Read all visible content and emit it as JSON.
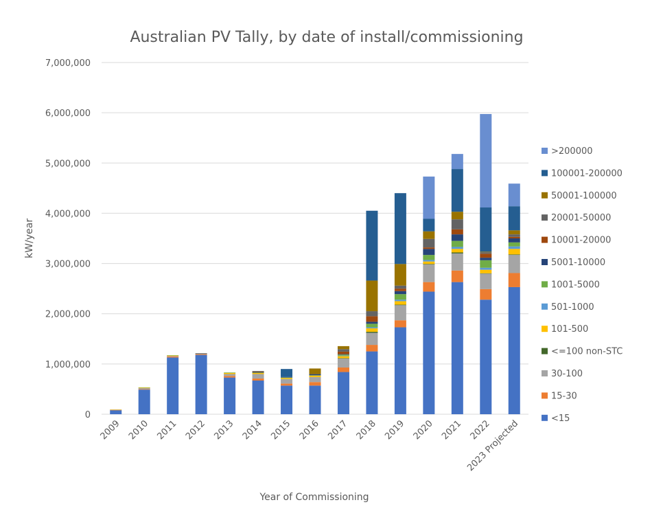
{
  "chart_data": {
    "type": "bar",
    "stacked": true,
    "title": "Australian PV Tally, by date of install/commissioning",
    "xlabel": "Year of Commissioning",
    "ylabel": "kW/year",
    "ylim": [
      0,
      7000000
    ],
    "yticks": [
      0,
      1000000,
      2000000,
      3000000,
      4000000,
      5000000,
      6000000,
      7000000
    ],
    "ytick_labels": [
      "0",
      "1,000,000",
      "2,000,000",
      "3,000,000",
      "4,000,000",
      "5,000,000",
      "6,000,000",
      "7,000,000"
    ],
    "grid": true,
    "legend_position": "right",
    "categories": [
      "2009",
      "2010",
      "2011",
      "2012",
      "2013",
      "2014",
      "2015",
      "2016",
      "2017",
      "2018",
      "2019",
      "2020",
      "2021",
      "2022",
      "2023 Projected"
    ],
    "series": [
      {
        "name": "<15",
        "color": "#4472c4",
        "values": [
          80000,
          490000,
          1130000,
          1180000,
          730000,
          670000,
          570000,
          570000,
          840000,
          1250000,
          1730000,
          2440000,
          2630000,
          2280000,
          2530000
        ]
      },
      {
        "name": "15-30",
        "color": "#ed7d31",
        "values": [
          5000,
          10000,
          20000,
          10000,
          30000,
          40000,
          40000,
          70000,
          90000,
          130000,
          140000,
          190000,
          230000,
          210000,
          280000
        ]
      },
      {
        "name": "30-100",
        "color": "#a5a5a5",
        "values": [
          5000,
          20000,
          10000,
          10000,
          40000,
          90000,
          90000,
          100000,
          180000,
          240000,
          300000,
          350000,
          340000,
          310000,
          360000
        ]
      },
      {
        "name": "<=100 non-STC",
        "color": "#43682b",
        "values": [
          0,
          0,
          0,
          0,
          0,
          0,
          0,
          0,
          5000,
          20000,
          10000,
          10000,
          20000,
          5000,
          10000
        ]
      },
      {
        "name": "101-500",
        "color": "#ffc000",
        "values": [
          5000,
          10000,
          10000,
          0,
          20000,
          20000,
          20000,
          30000,
          40000,
          70000,
          70000,
          50000,
          70000,
          70000,
          110000
        ]
      },
      {
        "name": "501-1000",
        "color": "#5b9bd5",
        "values": [
          0,
          0,
          0,
          0,
          0,
          0,
          0,
          0,
          10000,
          20000,
          30000,
          30000,
          40000,
          40000,
          50000
        ]
      },
      {
        "name": "1001-5000",
        "color": "#70ad47",
        "values": [
          0,
          5000,
          5000,
          0,
          10000,
          10000,
          10000,
          5000,
          20000,
          70000,
          110000,
          100000,
          120000,
          150000,
          80000
        ]
      },
      {
        "name": "5001-10000",
        "color": "#264478",
        "values": [
          0,
          0,
          0,
          0,
          0,
          5000,
          5000,
          20000,
          10000,
          40000,
          60000,
          120000,
          130000,
          50000,
          80000
        ]
      },
      {
        "name": "10001-20000",
        "color": "#9e480e",
        "values": [
          0,
          0,
          0,
          5000,
          0,
          5000,
          0,
          0,
          50000,
          110000,
          50000,
          30000,
          100000,
          80000,
          30000
        ]
      },
      {
        "name": "20001-50000",
        "color": "#636363",
        "values": [
          0,
          0,
          0,
          10000,
          0,
          20000,
          5000,
          5000,
          50000,
          100000,
          60000,
          170000,
          200000,
          30000,
          50000
        ]
      },
      {
        "name": "50001-100000",
        "color": "#997300",
        "values": [
          0,
          0,
          0,
          0,
          0,
          0,
          0,
          110000,
          60000,
          610000,
          430000,
          150000,
          150000,
          10000,
          80000
        ]
      },
      {
        "name": "100001-200000",
        "color": "#255e91",
        "values": [
          0,
          0,
          0,
          0,
          0,
          0,
          160000,
          0,
          0,
          1390000,
          1410000,
          250000,
          850000,
          880000,
          480000
        ]
      },
      {
        "name": ">200000",
        "color": "#698ed0",
        "values": [
          0,
          0,
          0,
          0,
          0,
          0,
          0,
          0,
          0,
          0,
          0,
          840000,
          300000,
          1860000,
          450000
        ]
      }
    ]
  }
}
